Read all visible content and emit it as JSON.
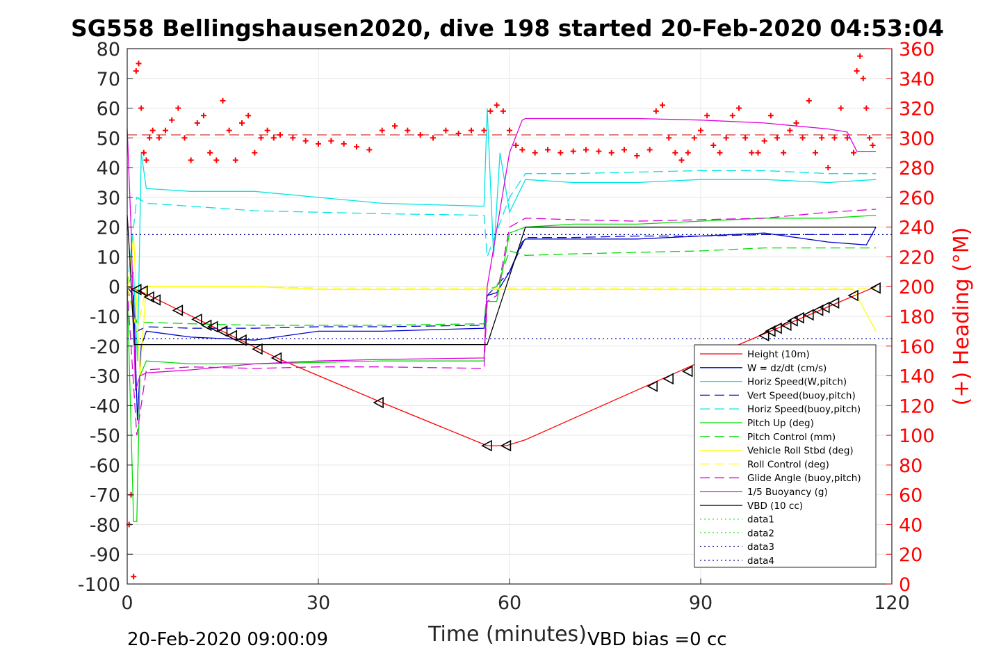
{
  "chart_data": {
    "type": "line",
    "title": "SG558 Bellingshausen2020, dive 198 started 20-Feb-2020 04:53:04",
    "xlabel": "Time (minutes)",
    "ylabel_right": "(+) Heading (°M)",
    "xlim": [
      0,
      120
    ],
    "ylim": [
      -100,
      80
    ],
    "ylim_right": [
      0,
      360
    ],
    "x_ticks": [
      "0",
      "30",
      "60",
      "90",
      "120"
    ],
    "y_ticks": [
      "80",
      "70",
      "60",
      "50",
      "40",
      "30",
      "20",
      "10",
      "0",
      "-10",
      "-20",
      "-30",
      "-40",
      "-50",
      "-60",
      "-70",
      "-80",
      "-90",
      "-100"
    ],
    "y_ticks_right": [
      "360",
      "340",
      "320",
      "300",
      "280",
      "260",
      "240",
      "220",
      "200",
      "180",
      "160",
      "140",
      "120",
      "100",
      "80",
      "60",
      "40",
      "20",
      "0"
    ],
    "grid": true,
    "legend_position": "bottom-right",
    "footer_left": "20-Feb-2020 09:00:09",
    "footer_right": "VBD bias =0 cc",
    "series": [
      {
        "name": "Height (10m)",
        "color": "#ff0000",
        "style": "solid",
        "x": [
          0,
          2,
          24,
          40,
          56.5,
          59.5,
          62.5,
          84,
          96,
          117.5
        ],
        "y": [
          0,
          -1.5,
          -24.5,
          -39,
          -53.5,
          -53.5,
          -51.5,
          -31,
          -19.5,
          0
        ]
      },
      {
        "name": "W = dz/dt (cm/s)",
        "color": "#0000cc",
        "style": "solid",
        "x": [
          0,
          1,
          1.6,
          2.2,
          3,
          10,
          20,
          30,
          40,
          56,
          56.5,
          58,
          60,
          62,
          62.5,
          70,
          80,
          90,
          100,
          110,
          116,
          117.5
        ],
        "y": [
          0,
          -3,
          -45,
          -20,
          -15,
          -17,
          -18,
          -15,
          -15,
          -14,
          -3,
          -2,
          5,
          15,
          16,
          16,
          16,
          17,
          18,
          15,
          14,
          20
        ]
      },
      {
        "name": "Horiz Speed(W,pitch)",
        "color": "#00e5e5",
        "style": "solid",
        "x": [
          0,
          1,
          1.6,
          2.2,
          3,
          10,
          20,
          30,
          40,
          56,
          56.5,
          57.5,
          58.5,
          60,
          62.5,
          70,
          80,
          90,
          100,
          110,
          117.5
        ],
        "y": [
          0,
          5,
          -25,
          45,
          33,
          32,
          32,
          30,
          28,
          27,
          60,
          10,
          45,
          25,
          36,
          35,
          35,
          36,
          36,
          35,
          36
        ]
      },
      {
        "name": "Vert Speed(buoy,pitch)",
        "color": "#0000cc",
        "style": "dashed",
        "x": [
          0,
          1.5,
          3,
          10,
          20,
          30,
          40,
          56,
          56.5,
          60,
          62.5,
          70,
          80,
          90,
          100,
          110,
          117.5
        ],
        "y": [
          0,
          -15,
          -13.5,
          -14,
          -14,
          -13.5,
          -13.5,
          -13,
          -3,
          5,
          16.5,
          16.5,
          17,
          17,
          17.5,
          17.5,
          17.5
        ]
      },
      {
        "name": "Horiz Speed(buoy,pitch)",
        "color": "#00e5e5",
        "style": "dashed",
        "x": [
          0,
          1.5,
          3,
          10,
          20,
          30,
          40,
          56,
          56.5,
          60,
          62.5,
          70,
          80,
          90,
          100,
          110,
          117.5
        ],
        "y": [
          0,
          30,
          28,
          27,
          25.5,
          25,
          24.5,
          24,
          10,
          30,
          38,
          38,
          38.5,
          39,
          39,
          38,
          38
        ]
      },
      {
        "name": "Pitch Up (deg)",
        "color": "#00dd00",
        "style": "solid",
        "x": [
          0,
          1,
          1.5,
          2,
          3,
          10,
          20,
          30,
          40,
          56,
          56.5,
          58,
          60,
          62.5,
          70,
          80,
          90,
          100,
          110,
          117.5
        ],
        "y": [
          0,
          -79,
          -79,
          -30,
          -25,
          -26,
          -26,
          -25.5,
          -25,
          -25,
          -5,
          -5,
          18,
          20,
          21,
          21,
          22,
          23,
          23,
          24
        ]
      },
      {
        "name": "Pitch Control (mm)",
        "color": "#00dd00",
        "style": "dashed",
        "x": [
          0,
          1.5,
          3,
          10,
          20,
          30,
          40,
          56,
          56.5,
          58,
          60,
          62.5,
          70,
          80,
          90,
          100,
          110,
          117.5
        ],
        "y": [
          0,
          -12,
          -12,
          -12.5,
          -13,
          -13,
          -13,
          -12.5,
          -1,
          0,
          12,
          10.5,
          11,
          11.5,
          12,
          13,
          13,
          13
        ]
      },
      {
        "name": "Vehicle Roll Stbd (deg)",
        "color": "#ffff00",
        "style": "solid",
        "x": [
          0,
          1,
          2,
          3,
          10,
          15,
          20,
          30,
          40,
          56,
          60,
          62.5,
          70,
          80,
          90,
          100,
          110,
          114,
          117.5
        ],
        "y": [
          -2,
          17,
          -30,
          0,
          0,
          0,
          0,
          -1,
          -1,
          -1,
          -1,
          -1,
          -1,
          -1,
          -1,
          -1,
          -1,
          -1,
          -15
        ]
      },
      {
        "name": "Roll Control (deg)",
        "color": "#ffff00",
        "style": "dashed",
        "x": [
          0,
          1.5,
          3,
          10,
          20,
          30,
          40,
          56,
          60,
          62.5,
          70,
          80,
          90,
          100,
          110,
          117.5
        ],
        "y": [
          0,
          -15,
          0,
          0,
          0,
          -0.5,
          -0.5,
          -0.5,
          -0.5,
          -0.5,
          -0.5,
          -0.5,
          -0.5,
          -0.5,
          -0.5,
          -0.5
        ]
      },
      {
        "name": "Glide Angle (buoy,pitch)",
        "color": "#dd00dd",
        "style": "dashed",
        "x": [
          0,
          1.5,
          3,
          10,
          20,
          30,
          40,
          56,
          56.5,
          58,
          60,
          62.5,
          70,
          80,
          90,
          100,
          110,
          117.5
        ],
        "y": [
          0,
          -50,
          -28,
          -27,
          -27.5,
          -27,
          -27,
          -27.5,
          -5,
          -3,
          20,
          23,
          22.5,
          22,
          22.5,
          23,
          25,
          26
        ]
      },
      {
        "name": "1/5 Buoyancy (g)",
        "color": "#dd00dd",
        "style": "solid",
        "x": [
          0,
          0.6,
          1.3,
          2,
          3,
          10,
          20,
          30,
          40,
          56,
          56.5,
          60,
          62,
          62.5,
          70,
          80,
          90,
          100,
          110,
          113,
          114.5,
          117.5
        ],
        "y": [
          53,
          20,
          -35,
          -30,
          -29,
          -28,
          -26,
          -25,
          -24.5,
          -24,
          0,
          45,
          56,
          56.5,
          56.5,
          56.5,
          56,
          55,
          53,
          52,
          45.5,
          45.5
        ]
      },
      {
        "name": "VBD (10 cc)",
        "color": "#000000",
        "style": "solid",
        "x": [
          0,
          0.4,
          1.1,
          2,
          56,
          56.5,
          62.5,
          117.5
        ],
        "y": [
          24,
          10,
          -19.5,
          -19.5,
          -19.5,
          -19.5,
          20,
          20
        ]
      },
      {
        "name": "data1",
        "color": "#00dd00",
        "style": "dotted",
        "x": [],
        "y": []
      },
      {
        "name": "data2",
        "color": "#00dd00",
        "style": "dotted",
        "x": [],
        "y": []
      },
      {
        "name": "data3",
        "color": "#000099",
        "style": "dotted",
        "x": [
          0,
          120
        ],
        "y": [
          17.5,
          17.5
        ]
      },
      {
        "name": "data4",
        "color": "#000099",
        "style": "dotted",
        "x": [
          0,
          120
        ],
        "y": [
          -17.5,
          -17.5
        ]
      }
    ],
    "reference_lines": [
      {
        "axis": "right",
        "color": "#cc0000",
        "style": "dashed",
        "y": 302
      }
    ],
    "heading_points": {
      "axis": "right",
      "color": "#ff0000",
      "marker": "+",
      "x": [
        0.3,
        0.6,
        1.0,
        1.4,
        1.8,
        2.2,
        2.6,
        3.0,
        3.5,
        4,
        5,
        6,
        7,
        8,
        9,
        10,
        11,
        12,
        13,
        14,
        15,
        16,
        17,
        18,
        19,
        20,
        21,
        22,
        23,
        24,
        26,
        28,
        30,
        32,
        34,
        36,
        38,
        40,
        42,
        44,
        46,
        48,
        50,
        52,
        54,
        56,
        57,
        58,
        59,
        60,
        61,
        62,
        64,
        66,
        68,
        70,
        72,
        74,
        76,
        78,
        80,
        82,
        83,
        84,
        85,
        86,
        87,
        88,
        89,
        90,
        91,
        92,
        93,
        94,
        95,
        96,
        97,
        98,
        99,
        100,
        101,
        102,
        103,
        104,
        105,
        106,
        107,
        108,
        109,
        110,
        111,
        112,
        113,
        114,
        114.5,
        115,
        115.5,
        116,
        116.5,
        117
      ],
      "y": [
        40,
        60,
        5,
        345,
        350,
        320,
        290,
        285,
        300,
        305,
        300,
        305,
        312,
        320,
        300,
        285,
        310,
        315,
        290,
        285,
        325,
        305,
        285,
        310,
        315,
        290,
        300,
        305,
        300,
        302,
        300,
        298,
        296,
        298,
        296,
        294,
        292,
        305,
        308,
        305,
        302,
        300,
        305,
        303,
        305,
        305,
        318,
        322,
        318,
        305,
        295,
        292,
        290,
        292,
        290,
        291,
        292,
        291,
        290,
        292,
        288,
        292,
        318,
        322,
        300,
        290,
        285,
        290,
        300,
        305,
        315,
        295,
        290,
        300,
        315,
        320,
        300,
        290,
        290,
        298,
        315,
        300,
        290,
        305,
        310,
        300,
        325,
        290,
        300,
        280,
        300,
        320,
        300,
        290,
        345,
        355,
        340,
        320,
        300,
        295
      ]
    },
    "vbd_markers": {
      "color": "#000000",
      "marker": "triangle",
      "x": [
        1.5,
        2.5,
        3.5,
        4.5,
        8,
        11,
        12.5,
        13.5,
        15,
        16.5,
        18,
        20.5,
        23.5,
        39.5,
        56.5,
        59.5,
        82.5,
        85,
        88,
        100,
        101,
        102,
        103.5,
        104.5,
        105.5,
        107,
        108.5,
        109.5,
        111,
        114,
        117.5
      ],
      "y": [
        -1,
        -1.5,
        -3.5,
        -4.5,
        -8,
        -11,
        -13,
        -13.5,
        -15,
        -16.5,
        -18,
        -21,
        -24,
        -39,
        -53.5,
        -53.5,
        -33.5,
        -31,
        -28.5,
        -16.5,
        -15,
        -14,
        -13,
        -11.5,
        -10.5,
        -9.5,
        -8,
        -7,
        -5.5,
        -3,
        -0.5
      ]
    }
  }
}
